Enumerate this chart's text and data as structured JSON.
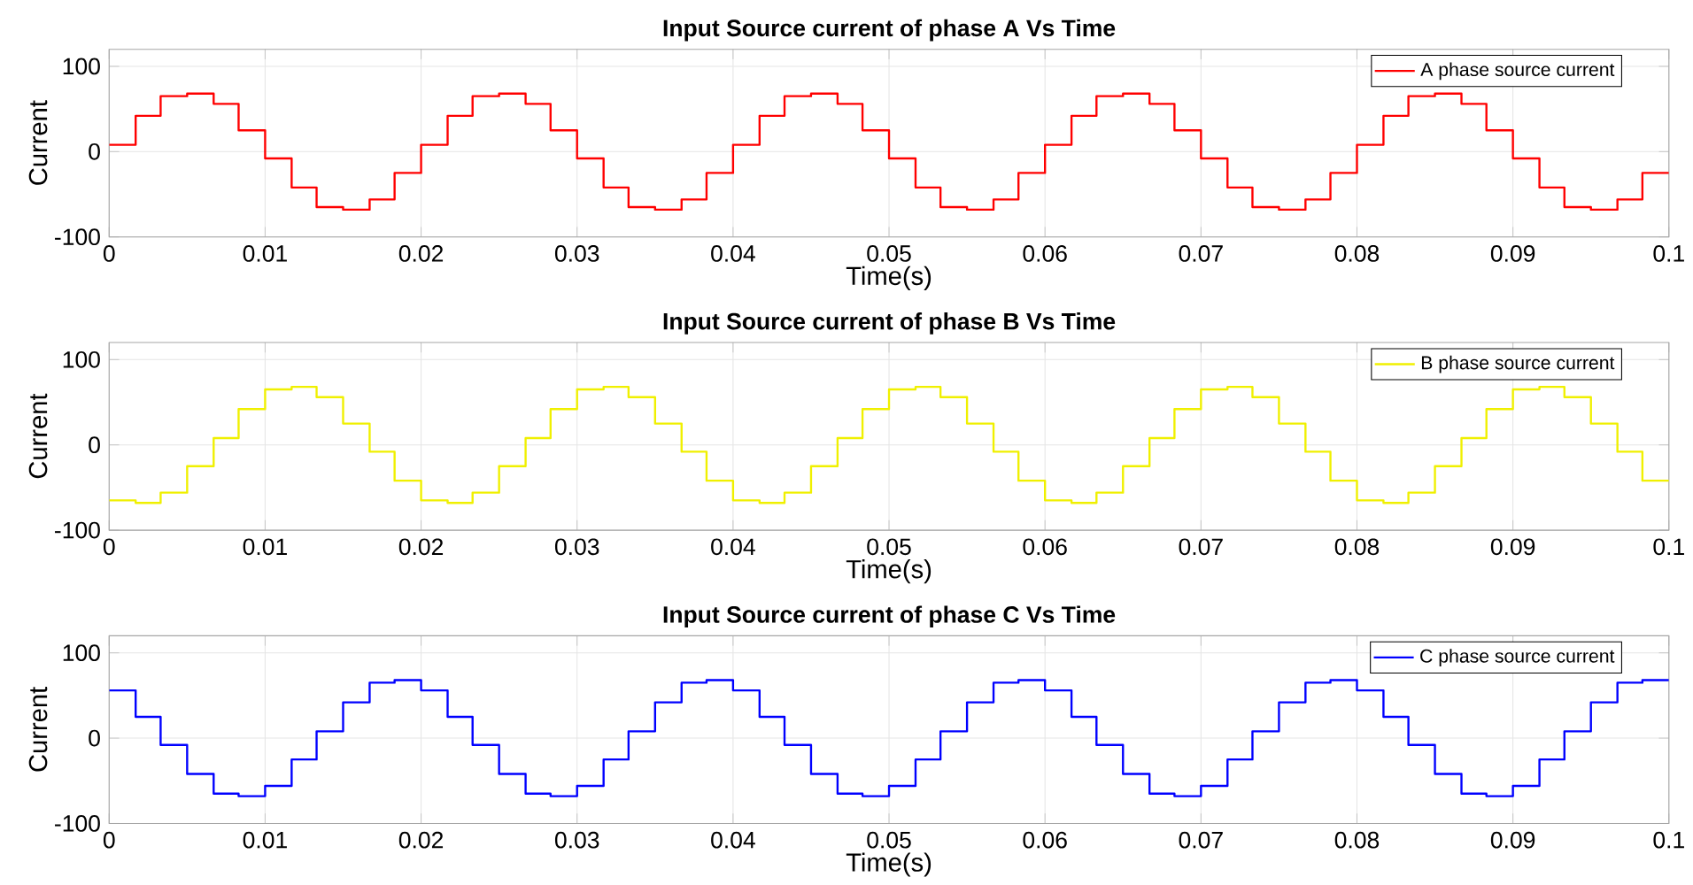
{
  "chart_data": [
    {
      "type": "step",
      "title": "Input Source current of phase A Vs Time",
      "xlabel": "Time(s)",
      "ylabel": "Current",
      "x": [
        0,
        0.0017,
        0.0033,
        0.005,
        0.0067,
        0.0083,
        0.01,
        0.0117,
        0.0133,
        0.015,
        0.0167,
        0.0183,
        0.02,
        0.0217,
        0.0233,
        0.025,
        0.0267,
        0.0283,
        0.03,
        0.0317,
        0.0333,
        0.035,
        0.0367,
        0.0383,
        0.04,
        0.0417,
        0.0433,
        0.045,
        0.0467,
        0.0483,
        0.05,
        0.0517,
        0.0533,
        0.055,
        0.0567,
        0.0583,
        0.06,
        0.0617,
        0.0633,
        0.065,
        0.0667,
        0.0683,
        0.07,
        0.0717,
        0.0733,
        0.075,
        0.0767,
        0.0783,
        0.08,
        0.0817,
        0.0833,
        0.085,
        0.0867,
        0.0883,
        0.09,
        0.0917,
        0.0933,
        0.095,
        0.0967,
        0.0983,
        0.1
      ],
      "series": [
        {
          "name": "A phase source current",
          "color": "#ff0000",
          "values": [
            8,
            42,
            65,
            68,
            56,
            25,
            -8,
            -42,
            -65,
            -68,
            -56,
            -25,
            8,
            42,
            65,
            68,
            56,
            25,
            -8,
            -42,
            -65,
            -68,
            -56,
            -25,
            8,
            42,
            65,
            68,
            56,
            25,
            -8,
            -42,
            -65,
            -68,
            -56,
            -25,
            8,
            42,
            65,
            68,
            56,
            25,
            -8,
            -42,
            -65,
            -68,
            -56,
            -25,
            8,
            42,
            65,
            68,
            56,
            25,
            -8,
            -42,
            -65,
            -68,
            -56,
            -25,
            -25
          ]
        }
      ],
      "xlim": [
        0,
        0.1
      ],
      "ylim": [
        -100,
        120
      ],
      "xticks": [
        0,
        0.01,
        0.02,
        0.03,
        0.04,
        0.05,
        0.06,
        0.07,
        0.08,
        0.09,
        0.1
      ],
      "yticks": [
        -100,
        0,
        100
      ],
      "grid": true,
      "legend": "top right"
    },
    {
      "type": "step",
      "title": "Input Source current of phase B Vs Time",
      "xlabel": "Time(s)",
      "ylabel": "Current",
      "x": [
        0,
        0.0017,
        0.0033,
        0.005,
        0.0067,
        0.0083,
        0.01,
        0.0117,
        0.0133,
        0.015,
        0.0167,
        0.0183,
        0.02,
        0.0217,
        0.0233,
        0.025,
        0.0267,
        0.0283,
        0.03,
        0.0317,
        0.0333,
        0.035,
        0.0367,
        0.0383,
        0.04,
        0.0417,
        0.0433,
        0.045,
        0.0467,
        0.0483,
        0.05,
        0.0517,
        0.0533,
        0.055,
        0.0567,
        0.0583,
        0.06,
        0.0617,
        0.0633,
        0.065,
        0.0667,
        0.0683,
        0.07,
        0.0717,
        0.0733,
        0.075,
        0.0767,
        0.0783,
        0.08,
        0.0817,
        0.0833,
        0.085,
        0.0867,
        0.0883,
        0.09,
        0.0917,
        0.0933,
        0.095,
        0.0967,
        0.0983,
        0.1
      ],
      "series": [
        {
          "name": "B phase source current",
          "color": "#f0f000",
          "values": [
            -65,
            -68,
            -56,
            -25,
            8,
            42,
            65,
            68,
            56,
            25,
            -8,
            -42,
            -65,
            -68,
            -56,
            -25,
            8,
            42,
            65,
            68,
            56,
            25,
            -8,
            -42,
            -65,
            -68,
            -56,
            -25,
            8,
            42,
            65,
            68,
            56,
            25,
            -8,
            -42,
            -65,
            -68,
            -56,
            -25,
            8,
            42,
            65,
            68,
            56,
            25,
            -8,
            -42,
            -65,
            -68,
            -56,
            -25,
            8,
            42,
            65,
            68,
            56,
            25,
            -8,
            -42,
            -42
          ]
        }
      ],
      "xlim": [
        0,
        0.1
      ],
      "ylim": [
        -100,
        120
      ],
      "xticks": [
        0,
        0.01,
        0.02,
        0.03,
        0.04,
        0.05,
        0.06,
        0.07,
        0.08,
        0.09,
        0.1
      ],
      "yticks": [
        -100,
        0,
        100
      ],
      "grid": true,
      "legend": "top right"
    },
    {
      "type": "step",
      "title": "Input Source current of phase C Vs Time",
      "xlabel": "Time(s)",
      "ylabel": "Current",
      "x": [
        0,
        0.0017,
        0.0033,
        0.005,
        0.0067,
        0.0083,
        0.01,
        0.0117,
        0.0133,
        0.015,
        0.0167,
        0.0183,
        0.02,
        0.0217,
        0.0233,
        0.025,
        0.0267,
        0.0283,
        0.03,
        0.0317,
        0.0333,
        0.035,
        0.0367,
        0.0383,
        0.04,
        0.0417,
        0.0433,
        0.045,
        0.0467,
        0.0483,
        0.05,
        0.0517,
        0.0533,
        0.055,
        0.0567,
        0.0583,
        0.06,
        0.0617,
        0.0633,
        0.065,
        0.0667,
        0.0683,
        0.07,
        0.0717,
        0.0733,
        0.075,
        0.0767,
        0.0783,
        0.08,
        0.0817,
        0.0833,
        0.085,
        0.0867,
        0.0883,
        0.09,
        0.0917,
        0.0933,
        0.095,
        0.0967,
        0.0983,
        0.1
      ],
      "series": [
        {
          "name": "C phase source current",
          "color": "#0000ff",
          "values": [
            56,
            25,
            -8,
            -42,
            -65,
            -68,
            -56,
            -25,
            8,
            42,
            65,
            68,
            56,
            25,
            -8,
            -42,
            -65,
            -68,
            -56,
            -25,
            8,
            42,
            65,
            68,
            56,
            25,
            -8,
            -42,
            -65,
            -68,
            -56,
            -25,
            8,
            42,
            65,
            68,
            56,
            25,
            -8,
            -42,
            -65,
            -68,
            -56,
            -25,
            8,
            42,
            65,
            68,
            56,
            25,
            -8,
            -42,
            -65,
            -68,
            -56,
            -25,
            8,
            42,
            65,
            68,
            68
          ]
        }
      ],
      "xlim": [
        0,
        0.1
      ],
      "ylim": [
        -100,
        120
      ],
      "xticks": [
        0,
        0.01,
        0.02,
        0.03,
        0.04,
        0.05,
        0.06,
        0.07,
        0.08,
        0.09,
        0.1
      ],
      "yticks": [
        -100,
        0,
        100
      ],
      "grid": true,
      "legend": "top right"
    }
  ]
}
